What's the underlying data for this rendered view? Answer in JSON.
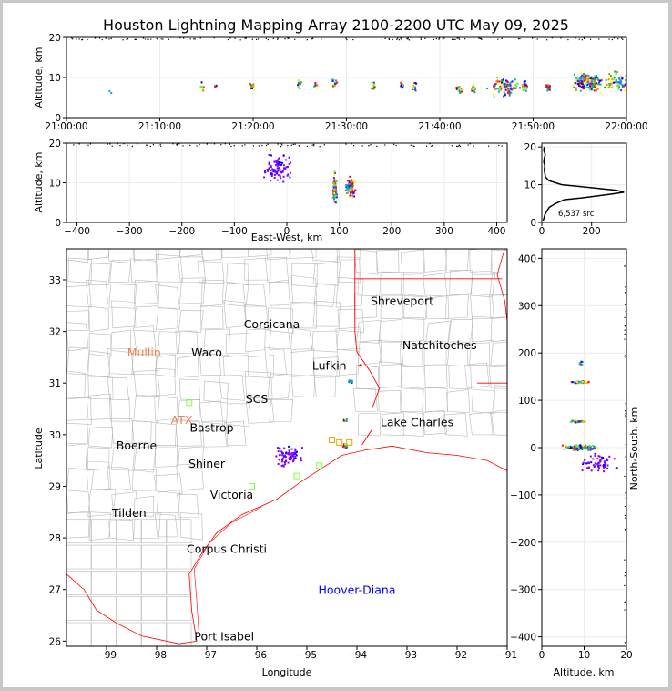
{
  "title": "Houston Lightning Mapping Array 2100-2200 UTC May 09, 2025",
  "chart_data": [
    {
      "id": "time_height",
      "type": "scatter",
      "ylabel": "Altitude, km",
      "xlim": [
        "21:00:00",
        "22:00:00"
      ],
      "ylim": [
        0,
        20
      ],
      "xticks": [
        "21:00:00",
        "21:10:00",
        "21:20:00",
        "21:30:00",
        "21:40:00",
        "21:50:00",
        "22:00:00"
      ],
      "yticks": [
        "0",
        "10",
        "20"
      ],
      "clusters": [
        {
          "t": "21:04:30",
          "alt": 6,
          "n": 2
        },
        {
          "t": "21:14:30",
          "alt": 8,
          "n": 8
        },
        {
          "t": "21:15:50",
          "alt": 8,
          "n": 6
        },
        {
          "t": "21:19:50",
          "alt": 8,
          "n": 10
        },
        {
          "t": "21:24:50",
          "alt": 8.5,
          "n": 12
        },
        {
          "t": "21:26:40",
          "alt": 8,
          "n": 8
        },
        {
          "t": "21:28:40",
          "alt": 9,
          "n": 14
        },
        {
          "t": "21:32:50",
          "alt": 8,
          "n": 14
        },
        {
          "t": "21:35:50",
          "alt": 8,
          "n": 18
        },
        {
          "t": "21:37:10",
          "alt": 8,
          "n": 14
        },
        {
          "t": "21:42:00",
          "alt": 7.5,
          "n": 16
        },
        {
          "t": "21:43:30",
          "alt": 7.5,
          "n": 12
        },
        {
          "t": "21:47:00",
          "alt": 8,
          "n": 90
        },
        {
          "t": "21:49:00",
          "alt": 8,
          "n": 40
        },
        {
          "t": "21:51:30",
          "alt": 8,
          "n": 30
        },
        {
          "t": "21:55:30",
          "alt": 9,
          "n": 160
        },
        {
          "t": "21:59:00",
          "alt": 9,
          "n": 80
        }
      ]
    },
    {
      "id": "ew_height",
      "type": "scatter",
      "xlabel": "East-West, km",
      "ylabel": "Altitude, km",
      "xlim": [
        -420,
        420
      ],
      "ylim": [
        0,
        20
      ],
      "xticks": [
        -400,
        -300,
        -200,
        -100,
        0,
        100,
        200,
        300,
        400
      ],
      "yticks": [
        0,
        10,
        20
      ],
      "clusters": [
        {
          "x": -20,
          "alt": 14,
          "spread_x": 35,
          "spread_alt": 5,
          "n": 90
        },
        {
          "x": 90,
          "alt": 9,
          "spread_x": 5,
          "spread_alt": 5,
          "n": 140
        },
        {
          "x": 120,
          "alt": 9,
          "spread_x": 12,
          "spread_alt": 3,
          "n": 90
        }
      ]
    },
    {
      "id": "alt_hist",
      "type": "line",
      "xlim": [
        0,
        340
      ],
      "ylim": [
        0,
        21
      ],
      "xticks": [
        0,
        200
      ],
      "yticks": [
        0,
        10,
        20
      ],
      "annotation": "6,537 src",
      "alt": [
        0.5,
        1,
        2,
        3,
        4,
        5,
        6,
        6.5,
        7,
        7.5,
        8,
        8.5,
        9,
        10,
        11,
        12,
        13,
        14,
        15,
        16,
        17,
        18,
        19,
        20
      ],
      "count": [
        5,
        8,
        12,
        20,
        30,
        55,
        90,
        160,
        220,
        280,
        330,
        300,
        230,
        80,
        30,
        15,
        12,
        10,
        12,
        8,
        10,
        14,
        8,
        10
      ]
    },
    {
      "id": "plan_map",
      "type": "scatter",
      "xlabel": "Longitude",
      "ylabel": "Latitude",
      "xlim": [
        -99.8,
        -91.0
      ],
      "ylim": [
        25.9,
        33.6
      ],
      "xticks": [
        -99,
        -98,
        -97,
        -96,
        -95,
        -94,
        -93,
        -92,
        -91
      ],
      "yticks": [
        26,
        27,
        28,
        29,
        30,
        31,
        32,
        33
      ],
      "cities": [
        {
          "name": "Shreveport",
          "lon": -93.1,
          "lat": 32.6,
          "color": "#000000"
        },
        {
          "name": "Corsicana",
          "lon": -95.7,
          "lat": 32.15,
          "color": "#000000"
        },
        {
          "name": "Natchitoches",
          "lon": -92.35,
          "lat": 31.75,
          "color": "#000000"
        },
        {
          "name": "Mullin",
          "lon": -98.25,
          "lat": 31.6,
          "color": "#f08050"
        },
        {
          "name": "Waco",
          "lon": -97.0,
          "lat": 31.6,
          "color": "#000000"
        },
        {
          "name": "Lufkin",
          "lon": -94.55,
          "lat": 31.35,
          "color": "#000000"
        },
        {
          "name": "SCS",
          "lon": -96.0,
          "lat": 30.7,
          "color": "#000000"
        },
        {
          "name": "ATX",
          "lon": -97.5,
          "lat": 30.3,
          "color": "#f08050"
        },
        {
          "name": "Bastrop",
          "lon": -96.9,
          "lat": 30.15,
          "color": "#000000"
        },
        {
          "name": "Lake Charles",
          "lon": -92.8,
          "lat": 30.25,
          "color": "#000000"
        },
        {
          "name": "Boerne",
          "lon": -98.4,
          "lat": 29.8,
          "color": "#000000"
        },
        {
          "name": "Shiner",
          "lon": -97.0,
          "lat": 29.45,
          "color": "#000000"
        },
        {
          "name": "Victoria",
          "lon": -96.5,
          "lat": 28.85,
          "color": "#000000"
        },
        {
          "name": "Tilden",
          "lon": -98.55,
          "lat": 28.5,
          "color": "#000000"
        },
        {
          "name": "Corpus Christi",
          "lon": -96.6,
          "lat": 27.8,
          "color": "#000000"
        },
        {
          "name": "Hoover-Diana",
          "lon": -94.0,
          "lat": 27.0,
          "color": "#0000ff"
        },
        {
          "name": "Port Isabel",
          "lon": -96.65,
          "lat": 26.1,
          "color": "#000000"
        }
      ],
      "clusters": [
        {
          "lon": -95.4,
          "lat": 29.6,
          "spread_lon": 0.35,
          "spread_lat": 0.25,
          "n": 80
        },
        {
          "lon": -94.25,
          "lat": 29.8,
          "spread_lon": 0.05,
          "spread_lat": 0.06,
          "n": 40
        },
        {
          "lon": -94.25,
          "lat": 30.3,
          "spread_lon": 0.05,
          "spread_lat": 0.04,
          "n": 30
        },
        {
          "lon": -94.15,
          "lat": 31.05,
          "spread_lon": 0.05,
          "spread_lat": 0.05,
          "n": 40
        },
        {
          "lon": -93.95,
          "lat": 31.35,
          "spread_lon": 0.03,
          "spread_lat": 0.04,
          "n": 15
        }
      ]
    },
    {
      "id": "ns_alt",
      "type": "scatter",
      "xlabel": "Altitude, km",
      "ylabel": "North-South, km",
      "xlim": [
        0,
        20
      ],
      "ylim": [
        -420,
        420
      ],
      "xticks": [
        0,
        10,
        20
      ],
      "yticks": [
        -400,
        -300,
        -200,
        -100,
        0,
        100,
        200,
        300,
        400
      ],
      "clusters": [
        {
          "alt": 9,
          "ns": 2,
          "spread_alt": 5,
          "spread_ns": 8,
          "n": 160
        },
        {
          "alt": 8.5,
          "ns": 57,
          "spread_alt": 2,
          "spread_ns": 3,
          "n": 40
        },
        {
          "alt": 9,
          "ns": 140,
          "spread_alt": 3,
          "spread_ns": 3,
          "n": 50
        },
        {
          "alt": 9,
          "ns": 180,
          "spread_alt": 1,
          "spread_ns": 4,
          "n": 10
        },
        {
          "alt": 13,
          "ns": -30,
          "spread_alt": 6,
          "spread_ns": 30,
          "n": 60
        }
      ]
    }
  ],
  "colors": {
    "palette": [
      "#0000ff",
      "#00a0ff",
      "#00c060",
      "#40ff40",
      "#ffff00",
      "#ff8000",
      "#ff0000",
      "#8000ff"
    ],
    "purple": "#8000ff",
    "coast": "#ff0000",
    "county": "#b8b8b8",
    "station_green": "#80ff40",
    "station_orange": "#f0a000"
  }
}
